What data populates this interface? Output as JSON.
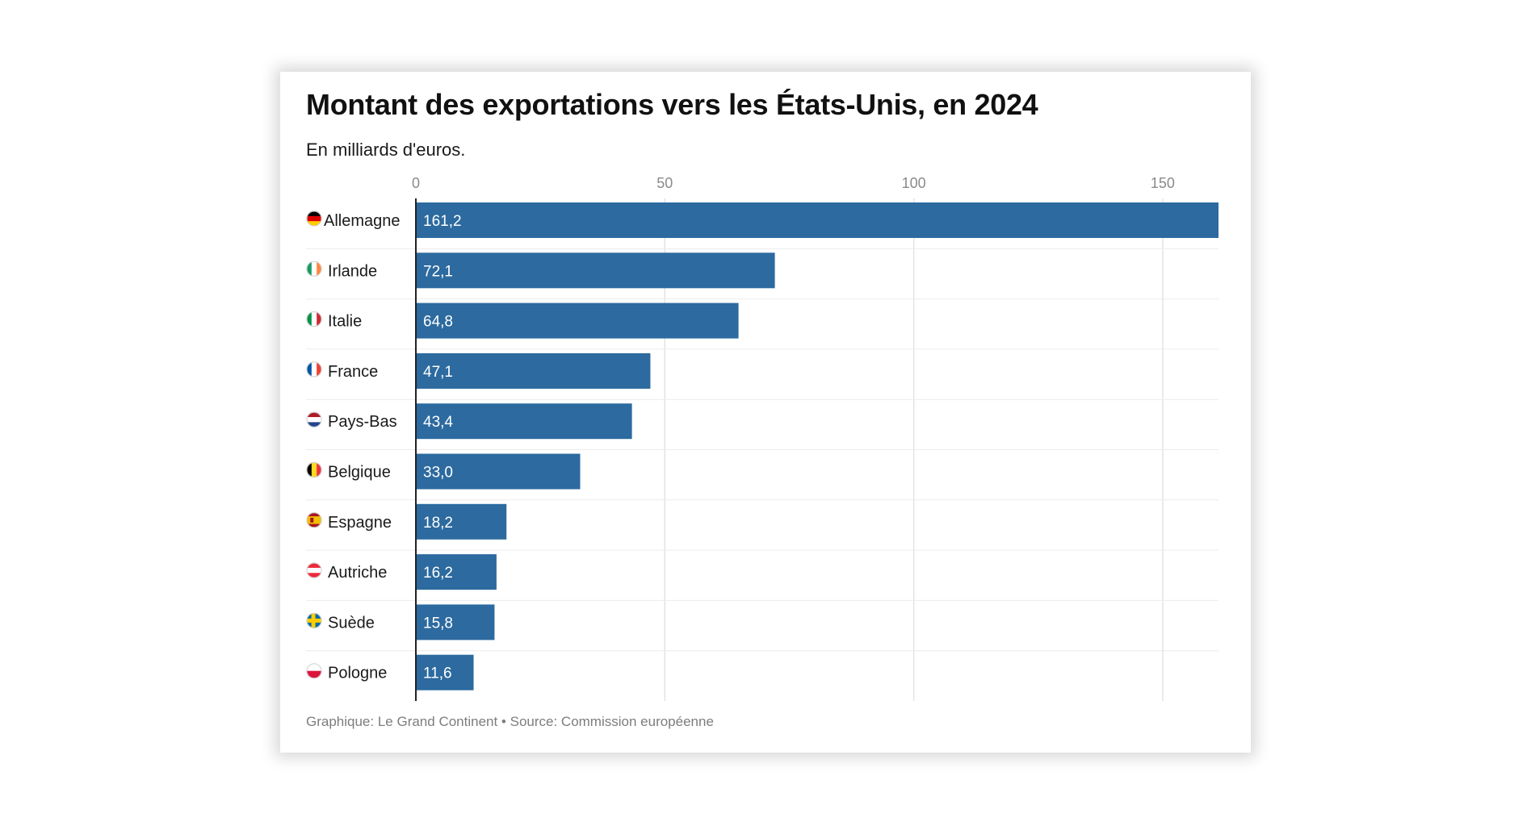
{
  "card": {
    "title": "Montant des exportations vers les États-Unis, en 2024",
    "subtitle": "En milliards d'euros.",
    "footer": "Graphique: Le Grand Continent • Source: Commission européenne"
  },
  "colors": {
    "bar": "#2c6a9f",
    "grid": "#e3e3e3",
    "axis": "#222222"
  },
  "chart_data": {
    "type": "bar",
    "orientation": "horizontal",
    "title": "Montant des exportations vers les États-Unis, en 2024",
    "subtitle": "En milliards d'euros.",
    "xlabel": "",
    "ylabel": "",
    "xlim": [
      0,
      161.2
    ],
    "ticks": [
      0,
      50,
      100,
      150
    ],
    "tick_labels": [
      "0",
      "50",
      "100",
      "150"
    ],
    "categories": [
      "Allemagne",
      "Irlande",
      "Italie",
      "France",
      "Pays-Bas",
      "Belgique",
      "Espagne",
      "Autriche",
      "Suède",
      "Pologne"
    ],
    "values": [
      161.2,
      72.1,
      64.8,
      47.1,
      43.4,
      33.0,
      18.2,
      16.2,
      15.8,
      11.6
    ],
    "value_labels": [
      "161,2",
      "72,1",
      "64,8",
      "47,1",
      "43,4",
      "33,0",
      "18,2",
      "16,2",
      "15,8",
      "11,6"
    ],
    "flags": [
      {
        "icon": "flag-de-icon",
        "colors": [
          "#000000",
          "#dd0000",
          "#ffce00"
        ],
        "dir": "h"
      },
      {
        "icon": "flag-ie-icon",
        "colors": [
          "#169b62",
          "#ffffff",
          "#ff883e"
        ],
        "dir": "v"
      },
      {
        "icon": "flag-it-icon",
        "colors": [
          "#009246",
          "#ffffff",
          "#ce2b37"
        ],
        "dir": "v"
      },
      {
        "icon": "flag-fr-icon",
        "colors": [
          "#0055a4",
          "#ffffff",
          "#ef4135"
        ],
        "dir": "v"
      },
      {
        "icon": "flag-nl-icon",
        "colors": [
          "#ae1c28",
          "#ffffff",
          "#21468b"
        ],
        "dir": "h"
      },
      {
        "icon": "flag-be-icon",
        "colors": [
          "#000000",
          "#fdda24",
          "#ef3340"
        ],
        "dir": "v"
      },
      {
        "icon": "flag-es-icon",
        "colors": [
          "#aa151b",
          "#f1bf00",
          "#aa151b"
        ],
        "dir": "es"
      },
      {
        "icon": "flag-at-icon",
        "colors": [
          "#ed2939",
          "#ffffff",
          "#ed2939"
        ],
        "dir": "h"
      },
      {
        "icon": "flag-se-icon",
        "colors": [
          "#006aa7",
          "#fecc00"
        ],
        "dir": "cross"
      },
      {
        "icon": "flag-pl-icon",
        "colors": [
          "#ffffff",
          "#dc143c"
        ],
        "dir": "h2"
      }
    ],
    "grid": true,
    "legend": "none"
  }
}
